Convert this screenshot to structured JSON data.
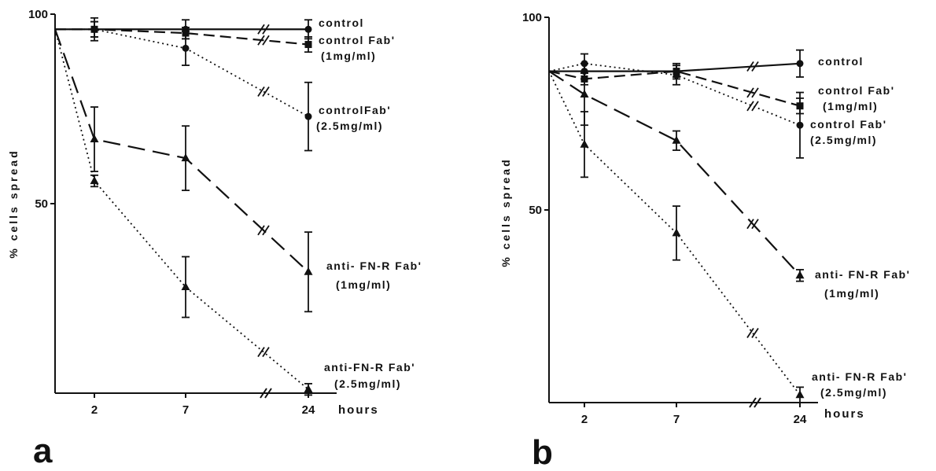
{
  "figure": {
    "panel_letters": [
      "a",
      "b"
    ]
  },
  "chart_data": [
    {
      "type": "line",
      "panel": "a",
      "ylabel": "% cells spread",
      "xlabel": "",
      "x_unit": "hours",
      "xticks": [
        "2",
        "7",
        "24"
      ],
      "yticks": [
        "100",
        "50"
      ],
      "ylim": [
        0,
        100
      ],
      "axis_break_on_x": true,
      "series": [
        {
          "label": "control",
          "marker": "circle",
          "line": "solid",
          "points": [
            {
              "x": 0,
              "y": 96
            },
            {
              "x": 2,
              "y": 96,
              "err": 3
            },
            {
              "x": 7,
              "y": 96,
              "err": 2.5
            },
            {
              "x": 24,
              "y": 96,
              "err": 2.5
            }
          ]
        },
        {
          "label": "control Fab' (1mg/ml)",
          "marker": "square",
          "line": "dashed",
          "points": [
            {
              "x": 0,
              "y": 96
            },
            {
              "x": 2,
              "y": 96,
              "err": 2
            },
            {
              "x": 7,
              "y": 95,
              "err": 1.5
            },
            {
              "x": 24,
              "y": 92,
              "err": 2
            }
          ]
        },
        {
          "label": "control Fab' (2.5mg/ml)",
          "marker": "circle",
          "line": "dotted",
          "points": [
            {
              "x": 0,
              "y": 96
            },
            {
              "x": 2,
              "y": 96,
              "err": 2
            },
            {
              "x": 7,
              "y": 91,
              "err": 4.5
            },
            {
              "x": 24,
              "y": 73,
              "err": 9
            }
          ]
        },
        {
          "label": "anti- FN-R Fab' (1mg/ml)",
          "marker": "triangle",
          "line": "dashed-long",
          "points": [
            {
              "x": 0,
              "y": 96
            },
            {
              "x": 2,
              "y": 67,
              "err": 8.5
            },
            {
              "x": 7,
              "y": 62,
              "err": 8.5
            },
            {
              "x": 24,
              "y": 32,
              "err": 10.5
            }
          ]
        },
        {
          "label": "anti-FN-R Fab' (2.5mg/ml)",
          "marker": "triangle",
          "line": "dotted",
          "points": [
            {
              "x": 0,
              "y": 96
            },
            {
              "x": 2,
              "y": 56,
              "err": 1.5
            },
            {
              "x": 7,
              "y": 28,
              "err": 8
            },
            {
              "x": 24,
              "y": 1,
              "err": 1.5
            }
          ]
        }
      ]
    },
    {
      "type": "line",
      "panel": "b",
      "ylabel": "% cells spread",
      "xlabel": "",
      "x_unit": "hours",
      "xticks": [
        "2",
        "7",
        "24"
      ],
      "yticks": [
        "100",
        "50"
      ],
      "ylim": [
        0,
        100
      ],
      "axis_break_on_x": true,
      "series": [
        {
          "label": "control",
          "marker": "circle",
          "line": "solid",
          "points": [
            {
              "x": 0,
              "y": 86
            },
            {
              "x": 2,
              "y": 86,
              "err": 2
            },
            {
              "x": 7,
              "y": 86,
              "err": 2
            },
            {
              "x": 24,
              "y": 88,
              "err": 3.5
            }
          ]
        },
        {
          "label": "control Fab' (1mg/ml)",
          "marker": "square",
          "line": "dashed",
          "points": [
            {
              "x": 0,
              "y": 86
            },
            {
              "x": 2,
              "y": 84,
              "err": 1.5
            },
            {
              "x": 7,
              "y": 86,
              "err": 1.5
            },
            {
              "x": 24,
              "y": 77,
              "err": 2
            }
          ]
        },
        {
          "label": "control Fab' (2.5mg/ml)",
          "marker": "circle",
          "line": "dotted",
          "points": [
            {
              "x": 0,
              "y": 86
            },
            {
              "x": 2,
              "y": 88,
              "err": 2.5
            },
            {
              "x": 7,
              "y": 85,
              "err": 2.5
            },
            {
              "x": 24,
              "y": 72,
              "err": 8.5
            }
          ]
        },
        {
          "label": "anti- FN-R Fab' (1mg/ml)",
          "marker": "triangle",
          "line": "dashed-long",
          "points": [
            {
              "x": 0,
              "y": 86
            },
            {
              "x": 2,
              "y": 80,
              "err": 8
            },
            {
              "x": 7,
              "y": 68,
              "err": 2.5
            },
            {
              "x": 24,
              "y": 33,
              "err": 1.5
            }
          ]
        },
        {
          "label": "anti- FN-R Fab' (2.5mg/ml)",
          "marker": "triangle",
          "line": "dotted",
          "points": [
            {
              "x": 0,
              "y": 86
            },
            {
              "x": 2,
              "y": 67,
              "err": 8.5
            },
            {
              "x": 7,
              "y": 44,
              "err": 7
            },
            {
              "x": 24,
              "y": 2,
              "err": 2
            }
          ]
        }
      ]
    }
  ]
}
